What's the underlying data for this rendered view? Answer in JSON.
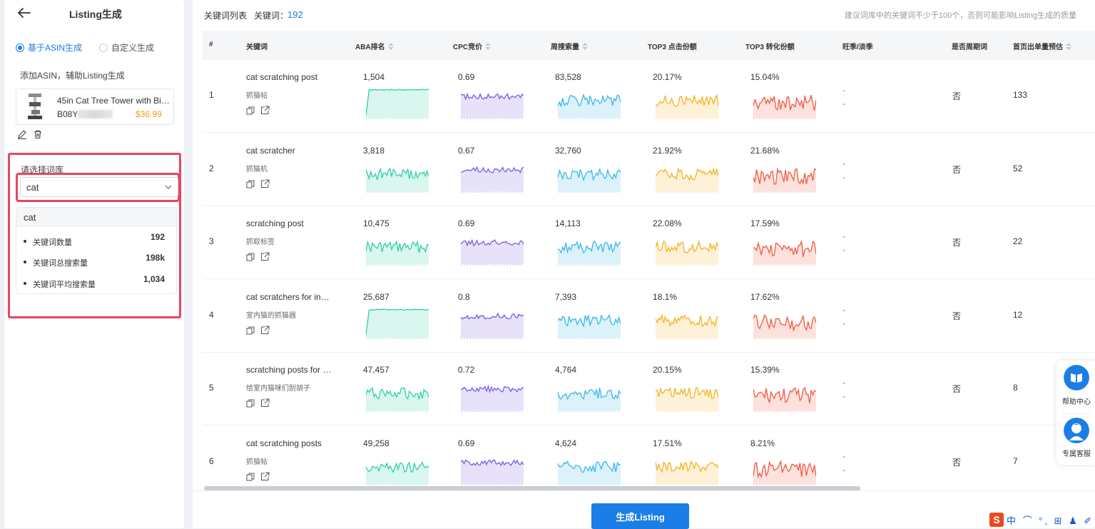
{
  "left": {
    "title": "Listing生成",
    "modes": [
      "基于ASIN生成",
      "自定义生成"
    ],
    "add_asin_label": "添加ASIN，辅助Listing生成",
    "product": {
      "name": "45in Cat Tree Tower with Bi…",
      "asin_prefix": "B08Y",
      "price": "$36.99"
    },
    "library_label": "请选择词库",
    "library_value": "cat",
    "library_card": {
      "name": "cat",
      "stats": [
        {
          "label": "关键词数量",
          "value": "192"
        },
        {
          "label": "关键词总搜索量",
          "value": "198k"
        },
        {
          "label": "关键词平均搜索量",
          "value": "1,034"
        }
      ]
    }
  },
  "main": {
    "title": "关键词列表",
    "count_label": "关键词：",
    "count": "192",
    "hint": "建议词库中的关键词不少于100个，否则可能影响Listing生成的质量",
    "columns": [
      "#",
      "关键词",
      "ABA排名",
      "CPC竞价",
      "周搜索量",
      "TOP3 点击份额",
      "TOP3 转化份额",
      "旺季/淡季",
      "是否周期词",
      "首页出单量预估"
    ],
    "rows": [
      {
        "idx": "1",
        "kw": "cat scratching post",
        "kw_cn": "抓猫帖",
        "aba": "1,504",
        "cpc": "0.69",
        "search": "83,528",
        "click": "20.17%",
        "conv": "15.04%",
        "season": [
          "-",
          "-"
        ],
        "cyclic": "否",
        "orders": "133"
      },
      {
        "idx": "2",
        "kw": "cat scratcher",
        "kw_cn": "抓猫机",
        "aba": "3,818",
        "cpc": "0.67",
        "search": "32,760",
        "click": "21.92%",
        "conv": "21.68%",
        "season": [
          "-",
          "-"
        ],
        "cyclic": "否",
        "orders": "52"
      },
      {
        "idx": "3",
        "kw": "scratching post",
        "kw_cn": "抓取标签",
        "aba": "10,475",
        "cpc": "0.69",
        "search": "14,113",
        "click": "22.08%",
        "conv": "17.59%",
        "season": [
          "-",
          "-"
        ],
        "cyclic": "否",
        "orders": "22"
      },
      {
        "idx": "4",
        "kw": "cat scratchers for ind…",
        "kw_cn": "室内猫的抓猫器",
        "aba": "25,687",
        "cpc": "0.8",
        "search": "7,393",
        "click": "18.1%",
        "conv": "17.62%",
        "season": [
          "-",
          "-"
        ],
        "cyclic": "否",
        "orders": "12"
      },
      {
        "idx": "5",
        "kw": "scratching posts for i…",
        "kw_cn": "给室内猫咪们刮胡子",
        "aba": "47,457",
        "cpc": "0.72",
        "search": "4,764",
        "click": "20.15%",
        "conv": "15.39%",
        "season": [
          "-",
          "-"
        ],
        "cyclic": "否",
        "orders": "8"
      },
      {
        "idx": "6",
        "kw": "cat scratching posts",
        "kw_cn": "抓猫帖",
        "aba": "49,258",
        "cpc": "0.69",
        "search": "4,624",
        "click": "17.51%",
        "conv": "8.21%",
        "season": [
          "-",
          "-"
        ],
        "cyclic": "否",
        "orders": "7"
      }
    ],
    "generate_button": "生成Listing"
  },
  "float": {
    "help": "帮助中心",
    "service": "专属客服"
  },
  "ime": {
    "logo": "S",
    "text": "中 ⌒ °, ⊞ ♟ ✐"
  },
  "colors": {
    "accent": "#1a7ee6",
    "aba": "#2fcfa9",
    "cpc": "#7a5ce6",
    "search": "#3ab7e8",
    "click": "#f5b324",
    "conv": "#ef5a43",
    "highlight": "#e94561",
    "price": "#f39a1e"
  }
}
